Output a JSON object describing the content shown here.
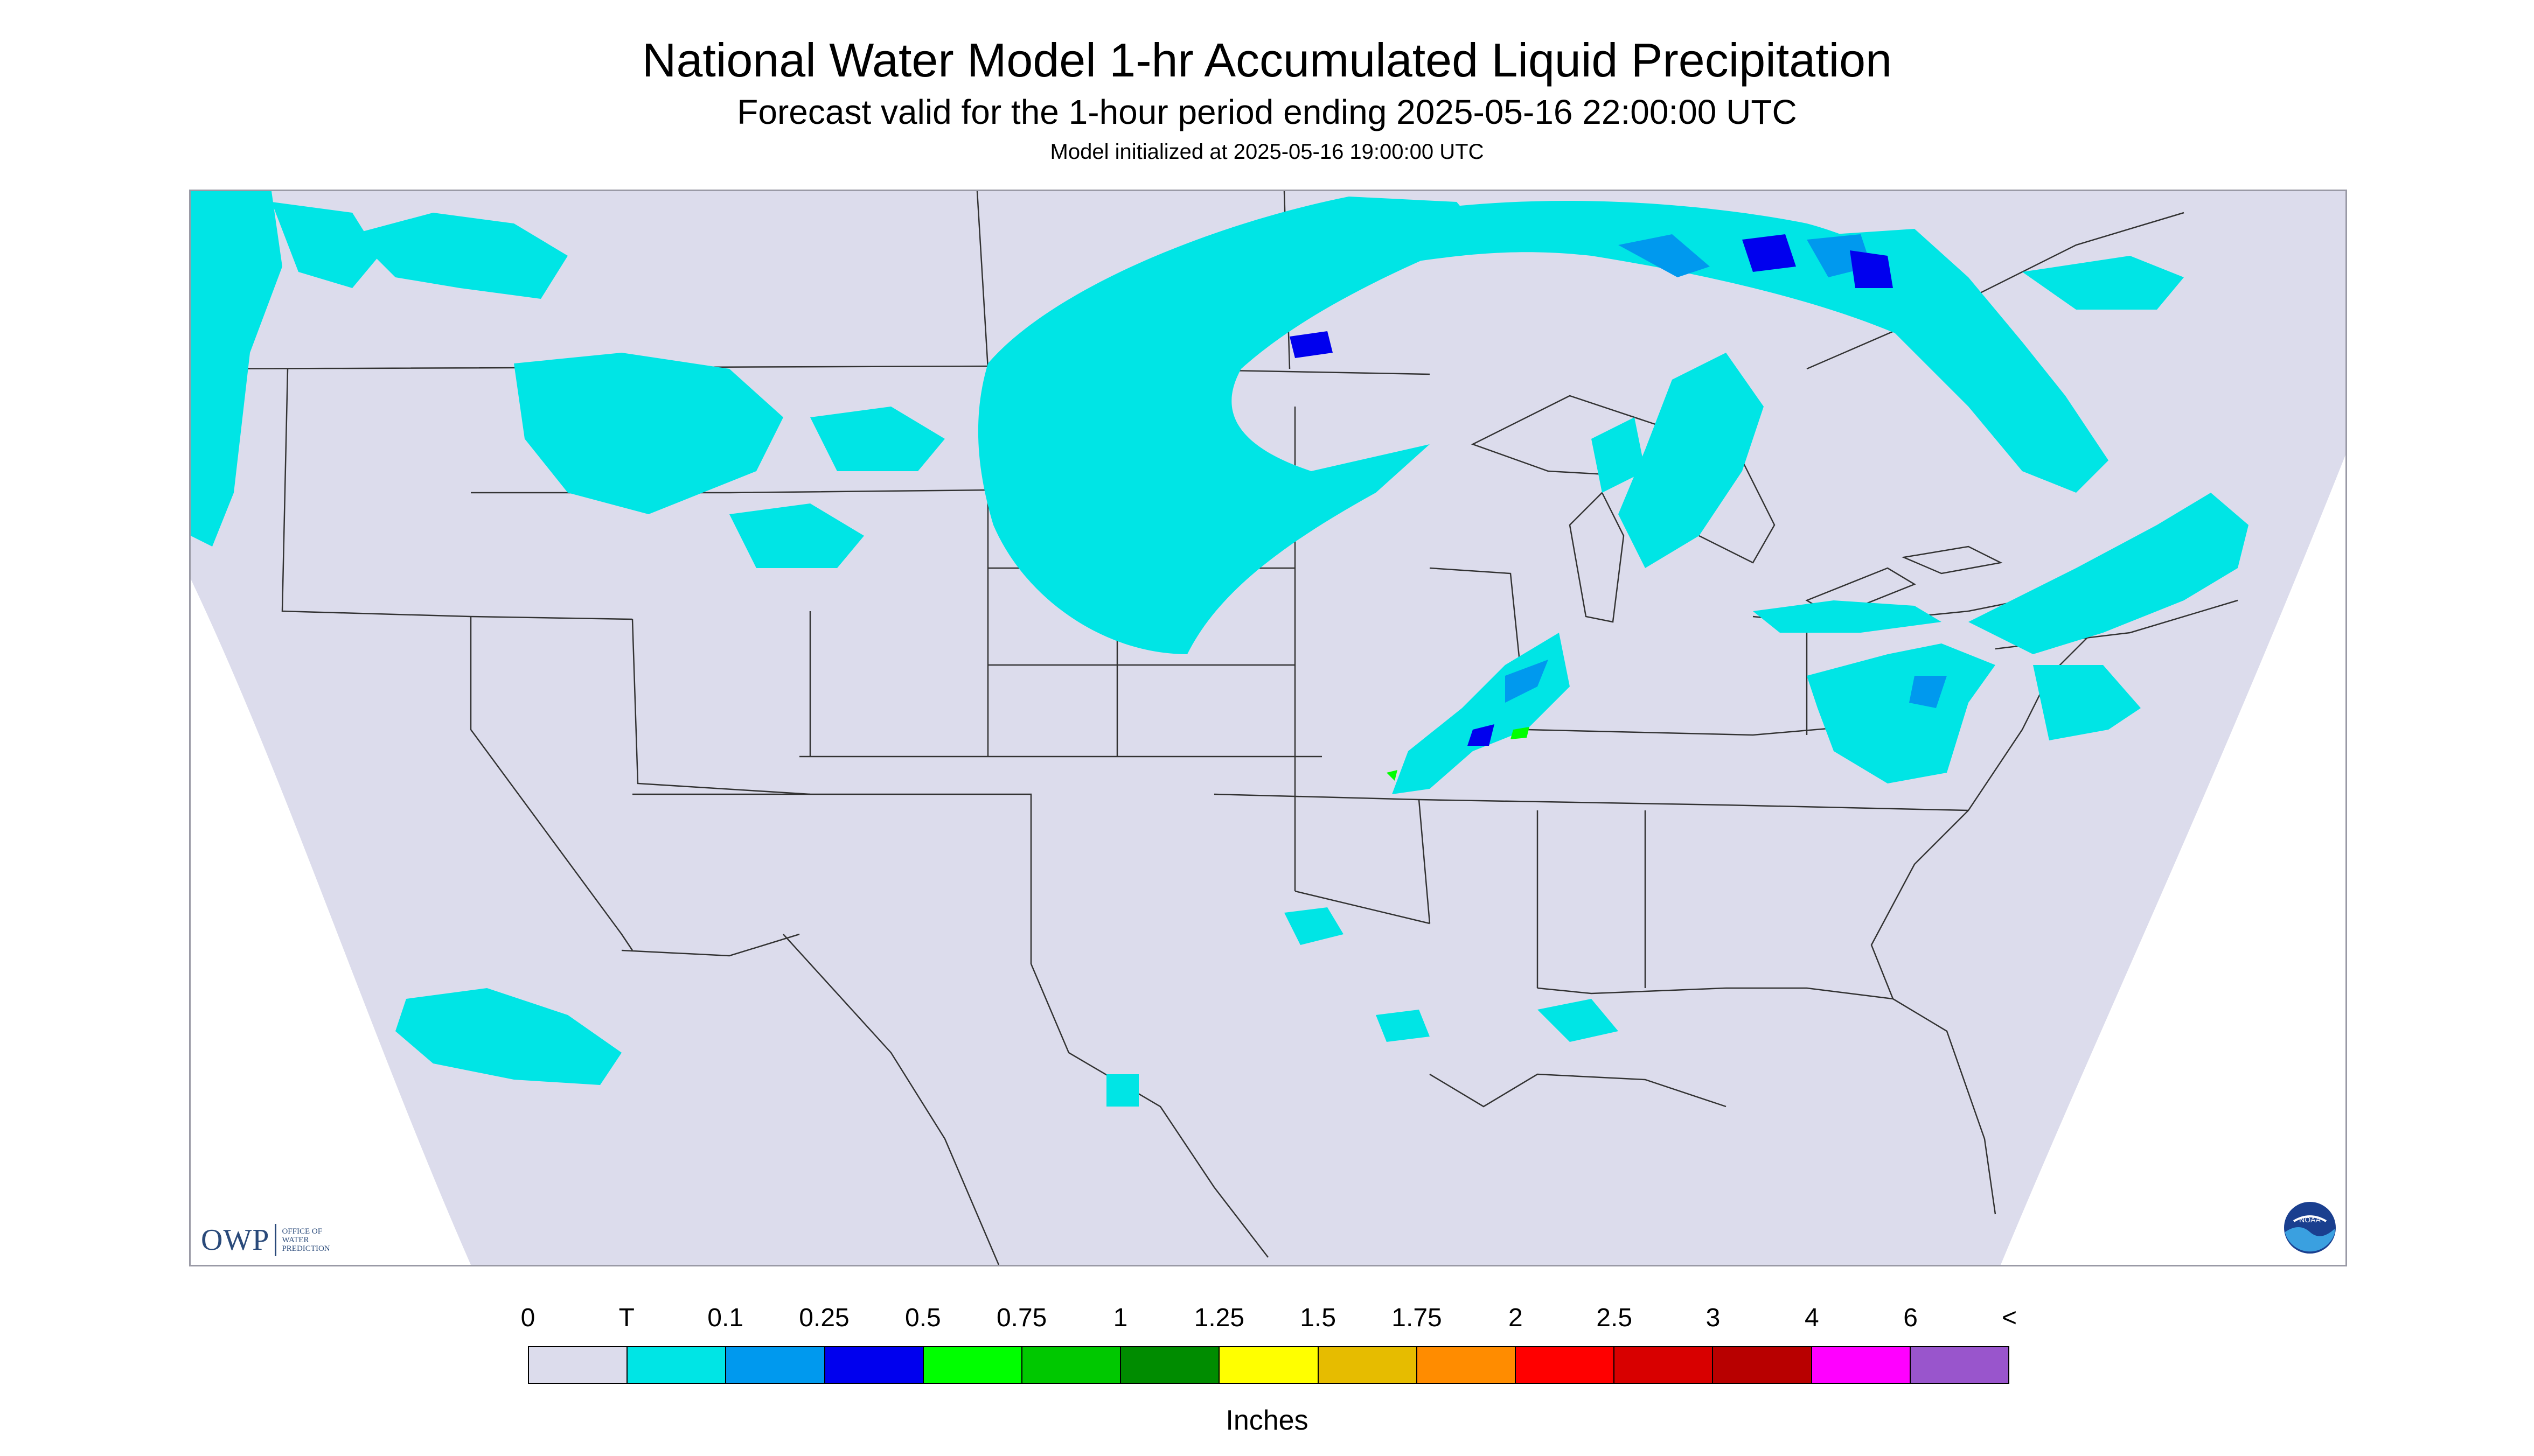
{
  "title": "National Water Model 1-hr Accumulated Liquid Precipitation",
  "subtitle": "Forecast valid for the 1-hour period ending 2025-05-16 22:00:00 UTC",
  "init_text": "Model initialized at 2025-05-16 19:00:00 UTC",
  "logo": {
    "owp": "OWP",
    "owp_lines": [
      "OFFICE OF",
      "WATER",
      "PREDICTION"
    ],
    "noaa": "NOAA"
  },
  "legend": {
    "units": "Inches",
    "labels": [
      "0",
      "T",
      "0.1",
      "0.25",
      "0.5",
      "0.75",
      "1",
      "1.25",
      "1.5",
      "1.75",
      "2",
      "2.5",
      "3",
      "4",
      "6",
      "<"
    ],
    "colors": [
      "#dcdcec",
      "#00e5e5",
      "#0099ee",
      "#0000ee",
      "#00ff00",
      "#00c800",
      "#008c00",
      "#ffff00",
      "#e6bc00",
      "#ff8c00",
      "#ff0000",
      "#d80000",
      "#b80000",
      "#ff00ff",
      "#9955cc"
    ]
  },
  "colors": {
    "map_background": "#dcdcec",
    "trace": "#00e5e5",
    "light_blue": "#0099ee",
    "blue": "#0000ee",
    "green": "#00ff00"
  }
}
